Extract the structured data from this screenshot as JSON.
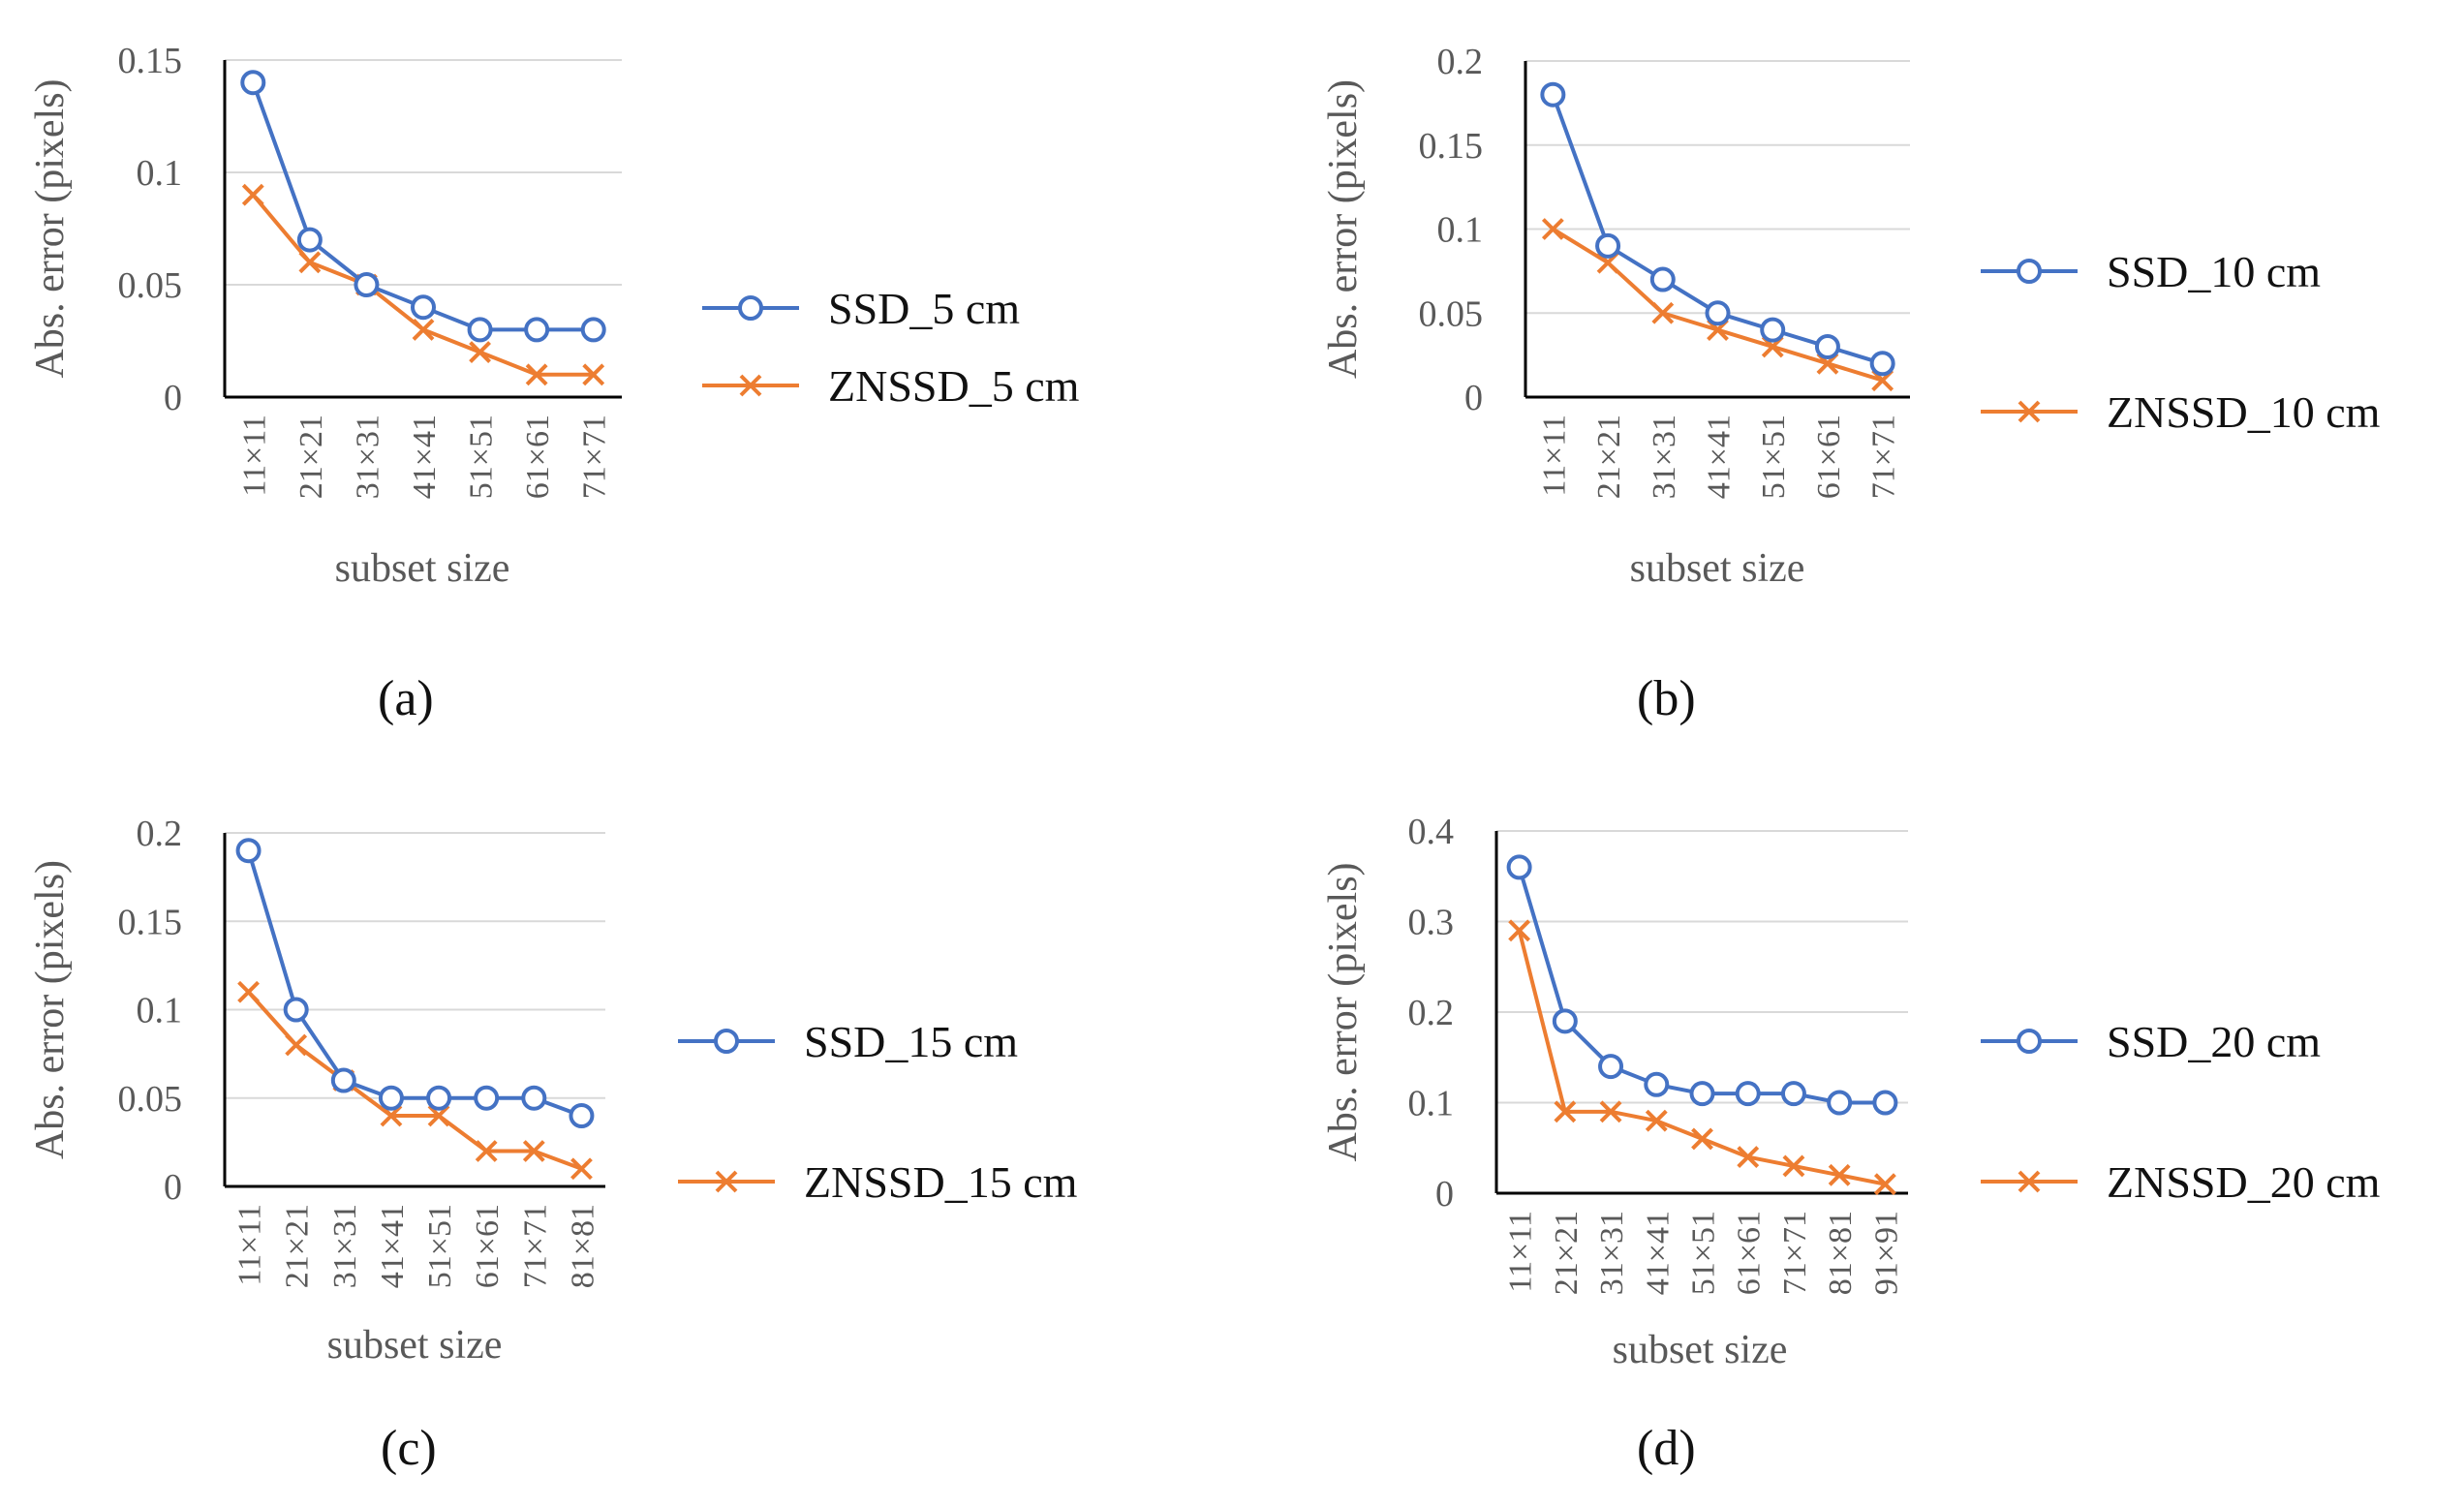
{
  "colors": {
    "ssd": "#4472C4",
    "znssd": "#ED7D31",
    "grid": "#D9D9D9",
    "axis": "#000000",
    "text": "#595959"
  },
  "panel_labels": [
    "(a)",
    "(b)",
    "(c)",
    "(d)"
  ],
  "chart_data": [
    {
      "type": "line",
      "title": "",
      "xlabel": "subset size",
      "ylabel": "Abs. error (pixels)",
      "categories": [
        "11×11",
        "21×21",
        "31×31",
        "41×41",
        "51×51",
        "61×61",
        "71×71"
      ],
      "ylim": [
        0,
        0.15
      ],
      "yticks": [
        0,
        0.05,
        0.1,
        0.15
      ],
      "ytick_labels": [
        "0",
        "0.05",
        "0.1",
        "0.15"
      ],
      "grid": true,
      "legend_position": "right",
      "series": [
        {
          "name": "SSD_5 cm",
          "marker": "circle",
          "values": [
            0.14,
            0.07,
            0.05,
            0.04,
            0.03,
            0.03,
            0.03
          ]
        },
        {
          "name": "ZNSSD_5 cm",
          "marker": "x",
          "values": [
            0.09,
            0.06,
            0.05,
            0.03,
            0.02,
            0.01,
            0.01
          ]
        }
      ]
    },
    {
      "type": "line",
      "title": "",
      "xlabel": "subset size",
      "ylabel": "Abs. error (pixels)",
      "categories": [
        "11×11",
        "21×21",
        "31×31",
        "41×41",
        "51×51",
        "61×61",
        "71×71"
      ],
      "ylim": [
        0,
        0.2
      ],
      "yticks": [
        0,
        0.05,
        0.1,
        0.15,
        0.2
      ],
      "ytick_labels": [
        "0",
        "0.05",
        "0.1",
        "0.15",
        "0.2"
      ],
      "grid": true,
      "legend_position": "right",
      "series": [
        {
          "name": "SSD_10 cm",
          "marker": "circle",
          "values": [
            0.18,
            0.09,
            0.07,
            0.05,
            0.04,
            0.03,
            0.02
          ]
        },
        {
          "name": "ZNSSD_10 cm",
          "marker": "x",
          "values": [
            0.1,
            0.08,
            0.05,
            0.04,
            0.03,
            0.02,
            0.01
          ]
        }
      ]
    },
    {
      "type": "line",
      "title": "",
      "xlabel": "subset size",
      "ylabel": "Abs. error (pixels)",
      "categories": [
        "11×11",
        "21×21",
        "31×31",
        "41×41",
        "51×51",
        "61×61",
        "71×71",
        "81×81"
      ],
      "ylim": [
        0,
        0.2
      ],
      "yticks": [
        0,
        0.05,
        0.1,
        0.15,
        0.2
      ],
      "ytick_labels": [
        "0",
        "0.05",
        "0.1",
        "0.15",
        "0.2"
      ],
      "grid": true,
      "legend_position": "right",
      "series": [
        {
          "name": "SSD_15 cm",
          "marker": "circle",
          "values": [
            0.19,
            0.1,
            0.06,
            0.05,
            0.05,
            0.05,
            0.05,
            0.04
          ]
        },
        {
          "name": "ZNSSD_15 cm",
          "marker": "x",
          "values": [
            0.11,
            0.08,
            0.06,
            0.04,
            0.04,
            0.02,
            0.02,
            0.01
          ]
        }
      ]
    },
    {
      "type": "line",
      "title": "",
      "xlabel": "subset size",
      "ylabel": "Abs. error (pixels)",
      "categories": [
        "11×11",
        "21×21",
        "31×31",
        "41×41",
        "51×51",
        "61×61",
        "71×71",
        "81×81",
        "91×91"
      ],
      "ylim": [
        0,
        0.4
      ],
      "yticks": [
        0,
        0.1,
        0.2,
        0.3,
        0.4
      ],
      "ytick_labels": [
        "0",
        "0.1",
        "0.2",
        "0.3",
        "0.4"
      ],
      "grid": true,
      "legend_position": "right",
      "series": [
        {
          "name": "SSD_20 cm",
          "marker": "circle",
          "values": [
            0.36,
            0.19,
            0.14,
            0.12,
            0.11,
            0.11,
            0.11,
            0.1,
            0.1
          ]
        },
        {
          "name": "ZNSSD_20 cm",
          "marker": "x",
          "values": [
            0.29,
            0.09,
            0.09,
            0.08,
            0.06,
            0.04,
            0.03,
            0.02,
            0.01
          ]
        }
      ]
    }
  ]
}
